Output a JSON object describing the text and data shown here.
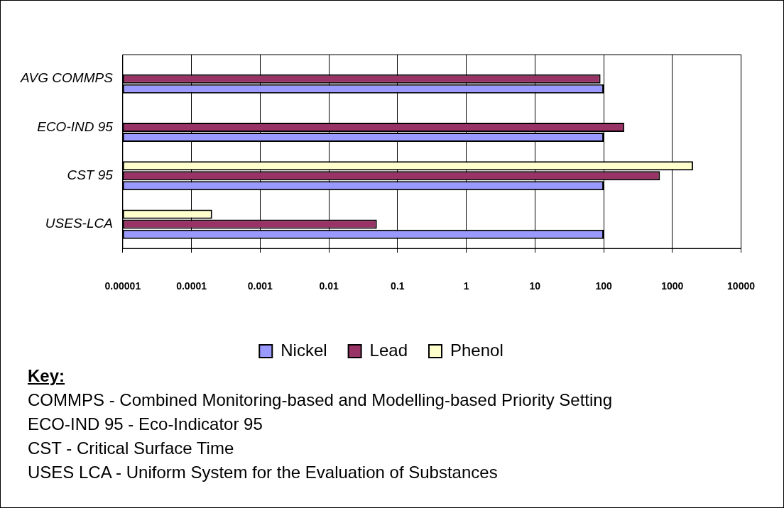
{
  "chart_data": {
    "type": "bar",
    "orientation": "horizontal",
    "log": "x",
    "categories": [
      "AVG COMMPS",
      "ECO-IND 95",
      "CST 95",
      "USES-LCA"
    ],
    "series": [
      {
        "name": "Nickel",
        "color": "#9999ff",
        "values": [
          100,
          100,
          100,
          100
        ]
      },
      {
        "name": "Lead",
        "color": "#993366",
        "values": [
          90,
          200,
          660,
          0.05
        ]
      },
      {
        "name": "Phenol",
        "color": "#ffffcc",
        "values": [
          null,
          null,
          2000,
          0.0002
        ]
      }
    ],
    "xlim": [
      1e-05,
      10000
    ],
    "xticks": [
      {
        "value": 1e-05,
        "label": "0.00001"
      },
      0.0001,
      0.001,
      0.01,
      0.1,
      1,
      10,
      100,
      1000,
      10000
    ],
    "grid": "x",
    "legend": "bottom",
    "annotations": [
      "Key:",
      "COMMPS - Combined Monitoring-based and Modelling-based Priority Setting",
      "ECO-IND 95 - Eco-Indicator 95",
      "CST - Critical Surface Time",
      "USES LCA - Uniform System for the Evaluation of Substances"
    ]
  }
}
